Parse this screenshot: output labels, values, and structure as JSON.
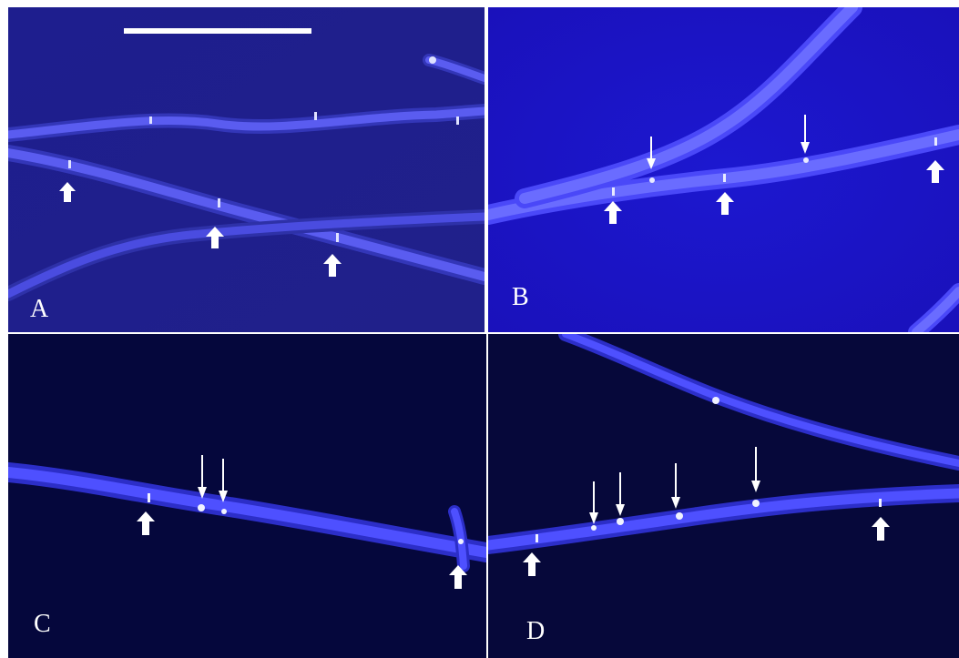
{
  "figure": {
    "panels": [
      {
        "id": "A",
        "label": "A",
        "background": "#1e1e8c",
        "has_scale_bar": true,
        "block_arrows": 3,
        "thin_arrows": 0
      },
      {
        "id": "B",
        "label": "B",
        "background": "#1a14c8",
        "has_scale_bar": false,
        "block_arrows": 3,
        "thin_arrows": 2
      },
      {
        "id": "C",
        "label": "C",
        "background": "#05063a",
        "has_scale_bar": false,
        "block_arrows": 2,
        "thin_arrows": 2
      },
      {
        "id": "D",
        "label": "D",
        "background": "#070838",
        "has_scale_bar": false,
        "block_arrows": 2,
        "thin_arrows": 4
      }
    ],
    "colors": {
      "hypha": "#5a5cff",
      "hypha_glow": "#3a3cd8",
      "septum": "#e8eaff",
      "arrow": "#ffffff",
      "scale_bar": "#ffffff"
    }
  }
}
